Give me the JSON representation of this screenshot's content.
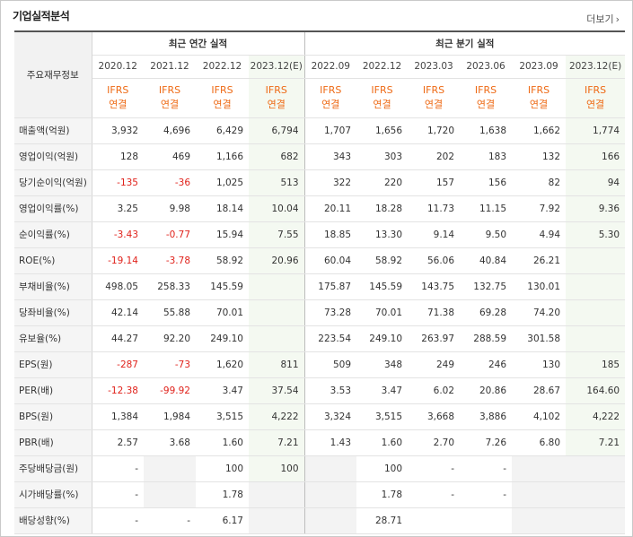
{
  "header": {
    "title": "기업실적분석",
    "more_label": "더보기",
    "more_chevron": "›"
  },
  "table": {
    "row_header_label": "주요재무정보",
    "group_annual": "최근 연간 실적",
    "group_quarter": "최근 분기 실적",
    "periods": [
      "2020.12",
      "2021.12",
      "2022.12",
      "2023.12(E)",
      "2022.09",
      "2022.12",
      "2023.03",
      "2023.06",
      "2023.09",
      "2023.12(E)"
    ],
    "basis_top": "IFRS",
    "basis_bottom": "연결",
    "rows": [
      {
        "label": "매출액(억원)",
        "values": [
          "3,932",
          "4,696",
          "6,429",
          "6,794",
          "1,707",
          "1,656",
          "1,720",
          "1,638",
          "1,662",
          "1,774"
        ]
      },
      {
        "label": "영업이익(억원)",
        "values": [
          "128",
          "469",
          "1,166",
          "682",
          "343",
          "303",
          "202",
          "183",
          "132",
          "166"
        ]
      },
      {
        "label": "당기순이익(억원)",
        "values": [
          "-135",
          "-36",
          "1,025",
          "513",
          "322",
          "220",
          "157",
          "156",
          "82",
          "94"
        ]
      },
      {
        "label": "영업이익률(%)",
        "values": [
          "3.25",
          "9.98",
          "18.14",
          "10.04",
          "20.11",
          "18.28",
          "11.73",
          "11.15",
          "7.92",
          "9.36"
        ]
      },
      {
        "label": "순이익률(%)",
        "values": [
          "-3.43",
          "-0.77",
          "15.94",
          "7.55",
          "18.85",
          "13.30",
          "9.14",
          "9.50",
          "4.94",
          "5.30"
        ]
      },
      {
        "label": "ROE(%)",
        "values": [
          "-19.14",
          "-3.78",
          "58.92",
          "20.96",
          "60.04",
          "58.92",
          "56.06",
          "40.84",
          "26.21",
          ""
        ]
      },
      {
        "label": "부채비율(%)",
        "values": [
          "498.05",
          "258.33",
          "145.59",
          "",
          "175.87",
          "145.59",
          "143.75",
          "132.75",
          "130.01",
          ""
        ]
      },
      {
        "label": "당좌비율(%)",
        "values": [
          "42.14",
          "55.88",
          "70.01",
          "",
          "73.28",
          "70.01",
          "71.38",
          "69.28",
          "74.20",
          ""
        ]
      },
      {
        "label": "유보율(%)",
        "values": [
          "44.27",
          "92.20",
          "249.10",
          "",
          "223.54",
          "249.10",
          "263.97",
          "288.59",
          "301.58",
          ""
        ]
      },
      {
        "label": "EPS(원)",
        "values": [
          "-287",
          "-73",
          "1,620",
          "811",
          "509",
          "348",
          "249",
          "246",
          "130",
          "185"
        ]
      },
      {
        "label": "PER(배)",
        "values": [
          "-12.38",
          "-99.92",
          "3.47",
          "37.54",
          "3.53",
          "3.47",
          "6.02",
          "20.86",
          "28.67",
          "164.60"
        ]
      },
      {
        "label": "BPS(원)",
        "values": [
          "1,384",
          "1,984",
          "3,515",
          "4,222",
          "3,324",
          "3,515",
          "3,668",
          "3,886",
          "4,102",
          "4,222"
        ]
      },
      {
        "label": "PBR(배)",
        "values": [
          "2.57",
          "3.68",
          "1.60",
          "7.21",
          "1.43",
          "1.60",
          "2.70",
          "7.26",
          "6.80",
          "7.21"
        ]
      },
      {
        "label": "주당배당금(원)",
        "values": [
          "-",
          "",
          "100",
          "100",
          "",
          "100",
          "-",
          "-",
          "",
          ""
        ]
      },
      {
        "label": "시가배당률(%)",
        "values": [
          "-",
          "",
          "1.78",
          "",
          "",
          "1.78",
          "-",
          "-",
          "",
          ""
        ]
      },
      {
        "label": "배당성향(%)",
        "values": [
          "-",
          "-",
          "6.17",
          "",
          "",
          "28.71",
          "",
          "",
          "",
          ""
        ]
      }
    ]
  },
  "colors": {
    "negative": "#e0221b",
    "ifrs": "#ee6a15",
    "estimate_bg": "#f4f9f1"
  }
}
